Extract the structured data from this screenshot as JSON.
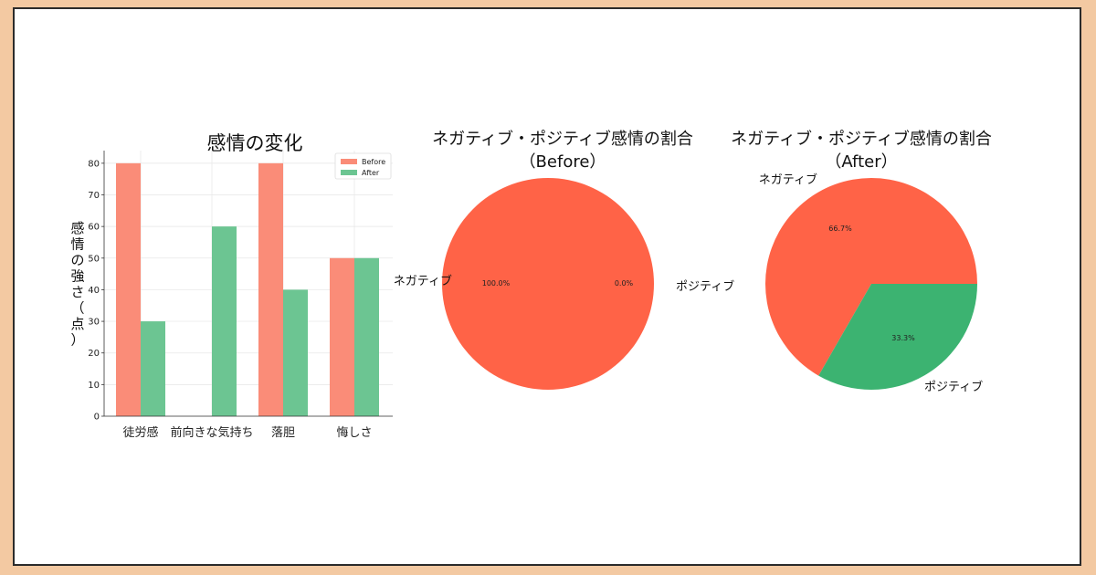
{
  "chart_data": [
    {
      "type": "bar",
      "title": "感情の変化",
      "ylabel": "感情の強さ（点）",
      "categories": [
        "徒労感",
        "前向きな気持ち",
        "落胆",
        "悔しさ"
      ],
      "series": [
        {
          "name": "Before",
          "values": [
            80,
            0,
            80,
            50
          ],
          "color": "#fa8c78"
        },
        {
          "name": "After",
          "values": [
            30,
            60,
            40,
            50
          ],
          "color": "#6cc592"
        }
      ],
      "ylim": [
        0,
        84
      ],
      "yticks": [
        0,
        10,
        20,
        30,
        40,
        50,
        60,
        70,
        80
      ],
      "grid": true,
      "legend": "top-right"
    },
    {
      "type": "pie",
      "title_lines": [
        "ネガティブ・ポジティブ感情の割合",
        "（Before）"
      ],
      "labels": [
        "ネガティブ",
        "ポジティブ"
      ],
      "values": [
        100.0,
        0.0
      ],
      "percent_labels": [
        "100.0%",
        "0.0%"
      ],
      "colors": [
        "#ff6347",
        "#3cb371"
      ]
    },
    {
      "type": "pie",
      "title_lines": [
        "ネガティブ・ポジティブ感情の割合",
        "（After）"
      ],
      "labels": [
        "ネガティブ",
        "ポジティブ"
      ],
      "values": [
        66.7,
        33.3
      ],
      "percent_labels": [
        "66.7%",
        "33.3%"
      ],
      "colors": [
        "#ff6347",
        "#3cb371"
      ]
    }
  ]
}
